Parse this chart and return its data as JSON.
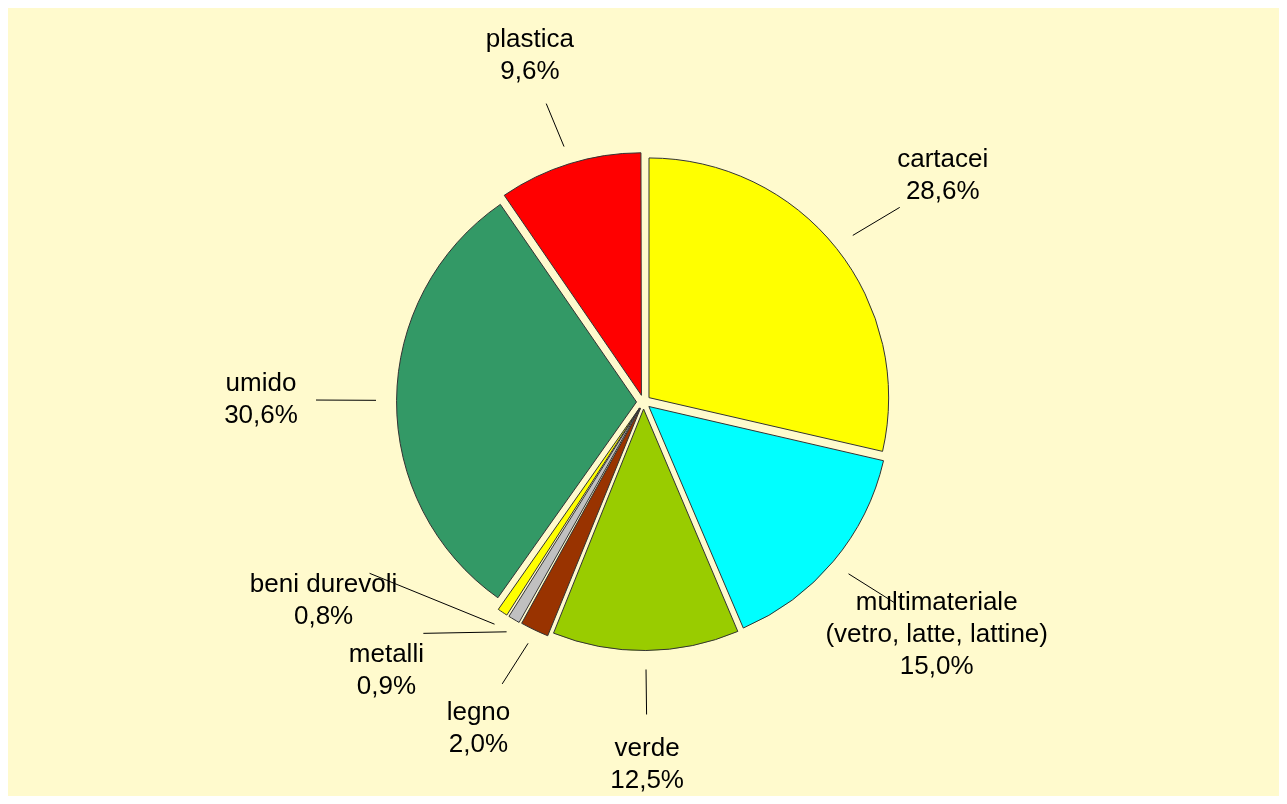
{
  "chart_data": {
    "type": "pie",
    "categories": [
      "cartacei",
      "multimateriale (vetro, latte, lattine)",
      "verde",
      "legno",
      "metalli",
      "beni durevoli",
      "umido",
      "plastica"
    ],
    "values": [
      28.6,
      15.0,
      12.5,
      2.0,
      0.9,
      0.8,
      30.6,
      9.6
    ],
    "value_labels": [
      "28,6%",
      "15,0%",
      "12,5%",
      "2,0%",
      "0,9%",
      "0,8%",
      "30,6%",
      "9,6%"
    ],
    "colors": [
      "#ffff00",
      "#00ffff",
      "#99cc00",
      "#993300",
      "#c0c0c0",
      "#ffff00",
      "#339966",
      "#ff0000"
    ],
    "legend": false
  }
}
